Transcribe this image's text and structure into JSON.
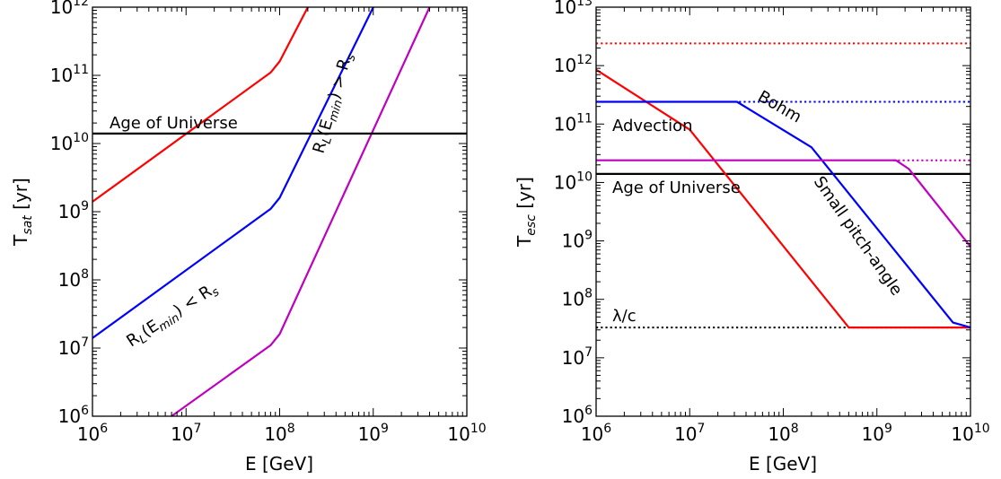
{
  "chart_data": [
    {
      "type": "line",
      "xlabel": "E [GeV]",
      "ylabel": "T_sat [yr]",
      "xscale": "log",
      "yscale": "log",
      "xlim": [
        1000000.0,
        10000000000.0
      ],
      "ylim": [
        1000000.0,
        1000000000000.0
      ],
      "xticks": [
        {
          "base": "10",
          "exp": "6"
        },
        {
          "base": "10",
          "exp": "7"
        },
        {
          "base": "10",
          "exp": "8"
        },
        {
          "base": "10",
          "exp": "9"
        },
        {
          "base": "10",
          "exp": "10"
        }
      ],
      "yticks": [
        {
          "base": "10",
          "exp": "6"
        },
        {
          "base": "10",
          "exp": "7"
        },
        {
          "base": "10",
          "exp": "8"
        },
        {
          "base": "10",
          "exp": "9"
        },
        {
          "base": "10",
          "exp": "10"
        },
        {
          "base": "10",
          "exp": "11"
        },
        {
          "base": "10",
          "exp": "12"
        }
      ],
      "series": [
        {
          "color": "#ff0000",
          "style": "solid",
          "x": [
            1000000.0,
            80000000.0,
            100000000.0,
            200000000.0
          ],
          "y": [
            1400000000.0,
            110000000000.0,
            160000000000.0,
            1000000000000.0
          ]
        },
        {
          "color": "#0000ff",
          "style": "solid",
          "x": [
            1000000.0,
            80000000.0,
            100000000.0,
            1000000000.0
          ],
          "y": [
            14000000.0,
            1100000000.0,
            1600000000.0,
            1000000000000.0
          ]
        },
        {
          "color": "#bf00bf",
          "style": "solid",
          "x": [
            7000000.0,
            80000000.0,
            100000000.0,
            4000000000.0
          ],
          "y": [
            1000000.0,
            11000000.0,
            16000000.0,
            1000000000000.0
          ]
        },
        {
          "color": "#000000",
          "style": "solid",
          "x": [
            1000000.0,
            10000000000.0
          ],
          "y": [
            14000000000.0,
            14000000000.0
          ]
        }
      ],
      "annotations": {
        "age": "Age of Universe",
        "rl_gt": "R_L(E_min) > R_s",
        "rl_lt": "R_L(E_min) < R_s"
      }
    },
    {
      "type": "line",
      "xlabel": "E [GeV]",
      "ylabel": "T_esc [yr]",
      "xscale": "log",
      "yscale": "log",
      "xlim": [
        1000000.0,
        10000000000.0
      ],
      "ylim": [
        1000000.0,
        10000000000000.0
      ],
      "xticks": [
        {
          "base": "10",
          "exp": "6"
        },
        {
          "base": "10",
          "exp": "7"
        },
        {
          "base": "10",
          "exp": "8"
        },
        {
          "base": "10",
          "exp": "9"
        },
        {
          "base": "10",
          "exp": "10"
        }
      ],
      "yticks": [
        {
          "base": "10",
          "exp": "6"
        },
        {
          "base": "10",
          "exp": "7"
        },
        {
          "base": "10",
          "exp": "8"
        },
        {
          "base": "10",
          "exp": "9"
        },
        {
          "base": "10",
          "exp": "10"
        },
        {
          "base": "10",
          "exp": "11"
        },
        {
          "base": "10",
          "exp": "12"
        },
        {
          "base": "10",
          "exp": "13"
        }
      ],
      "series": [
        {
          "color": "#ff0000",
          "style": "dotted",
          "x": [
            1000000.0,
            10000000000.0
          ],
          "y": [
            2400000000000.0,
            2400000000000.0
          ]
        },
        {
          "color": "#0000ff",
          "style": "dotted",
          "x": [
            30000000.0,
            10000000000.0
          ],
          "y": [
            240000000000.0,
            240000000000.0
          ]
        },
        {
          "color": "#bf00bf",
          "style": "dotted",
          "x": [
            1500000000.0,
            10000000000.0
          ],
          "y": [
            24000000000.0,
            24000000000.0
          ]
        },
        {
          "color": "#000000",
          "style": "dotted",
          "x": [
            1000000.0,
            10000000000.0
          ],
          "y": [
            33000000.0,
            33000000.0
          ]
        },
        {
          "color": "#000000",
          "style": "solid",
          "x": [
            1000000.0,
            10000000000.0
          ],
          "y": [
            14000000000.0,
            14000000000.0
          ]
        },
        {
          "color": "#ff0000",
          "style": "solid",
          "x": [
            1000000.0,
            10000000.0,
            500000000.0,
            10000000000.0
          ],
          "y": [
            850000000000.0,
            80000000000.0,
            33000000.0,
            33000000.0
          ]
        },
        {
          "color": "#0000ff",
          "style": "solid",
          "x": [
            1000000.0,
            32000000.0,
            200000000.0,
            6500000000.0,
            10000000000.0
          ],
          "y": [
            240000000000.0,
            240000000000.0,
            40000000000.0,
            40000000.0,
            33000000.0
          ]
        },
        {
          "color": "#bf00bf",
          "style": "solid",
          "x": [
            1000000.0,
            1600000000.0,
            2200000000.0,
            10000000000.0
          ],
          "y": [
            24000000000.0,
            24000000000.0,
            17000000000.0,
            800000000.0
          ]
        }
      ],
      "annotations": {
        "bohm": "Bohm",
        "advection": "Advection",
        "age": "Age of Universe",
        "small": "Small pitch-angle",
        "lambda": "λ/c"
      }
    }
  ]
}
